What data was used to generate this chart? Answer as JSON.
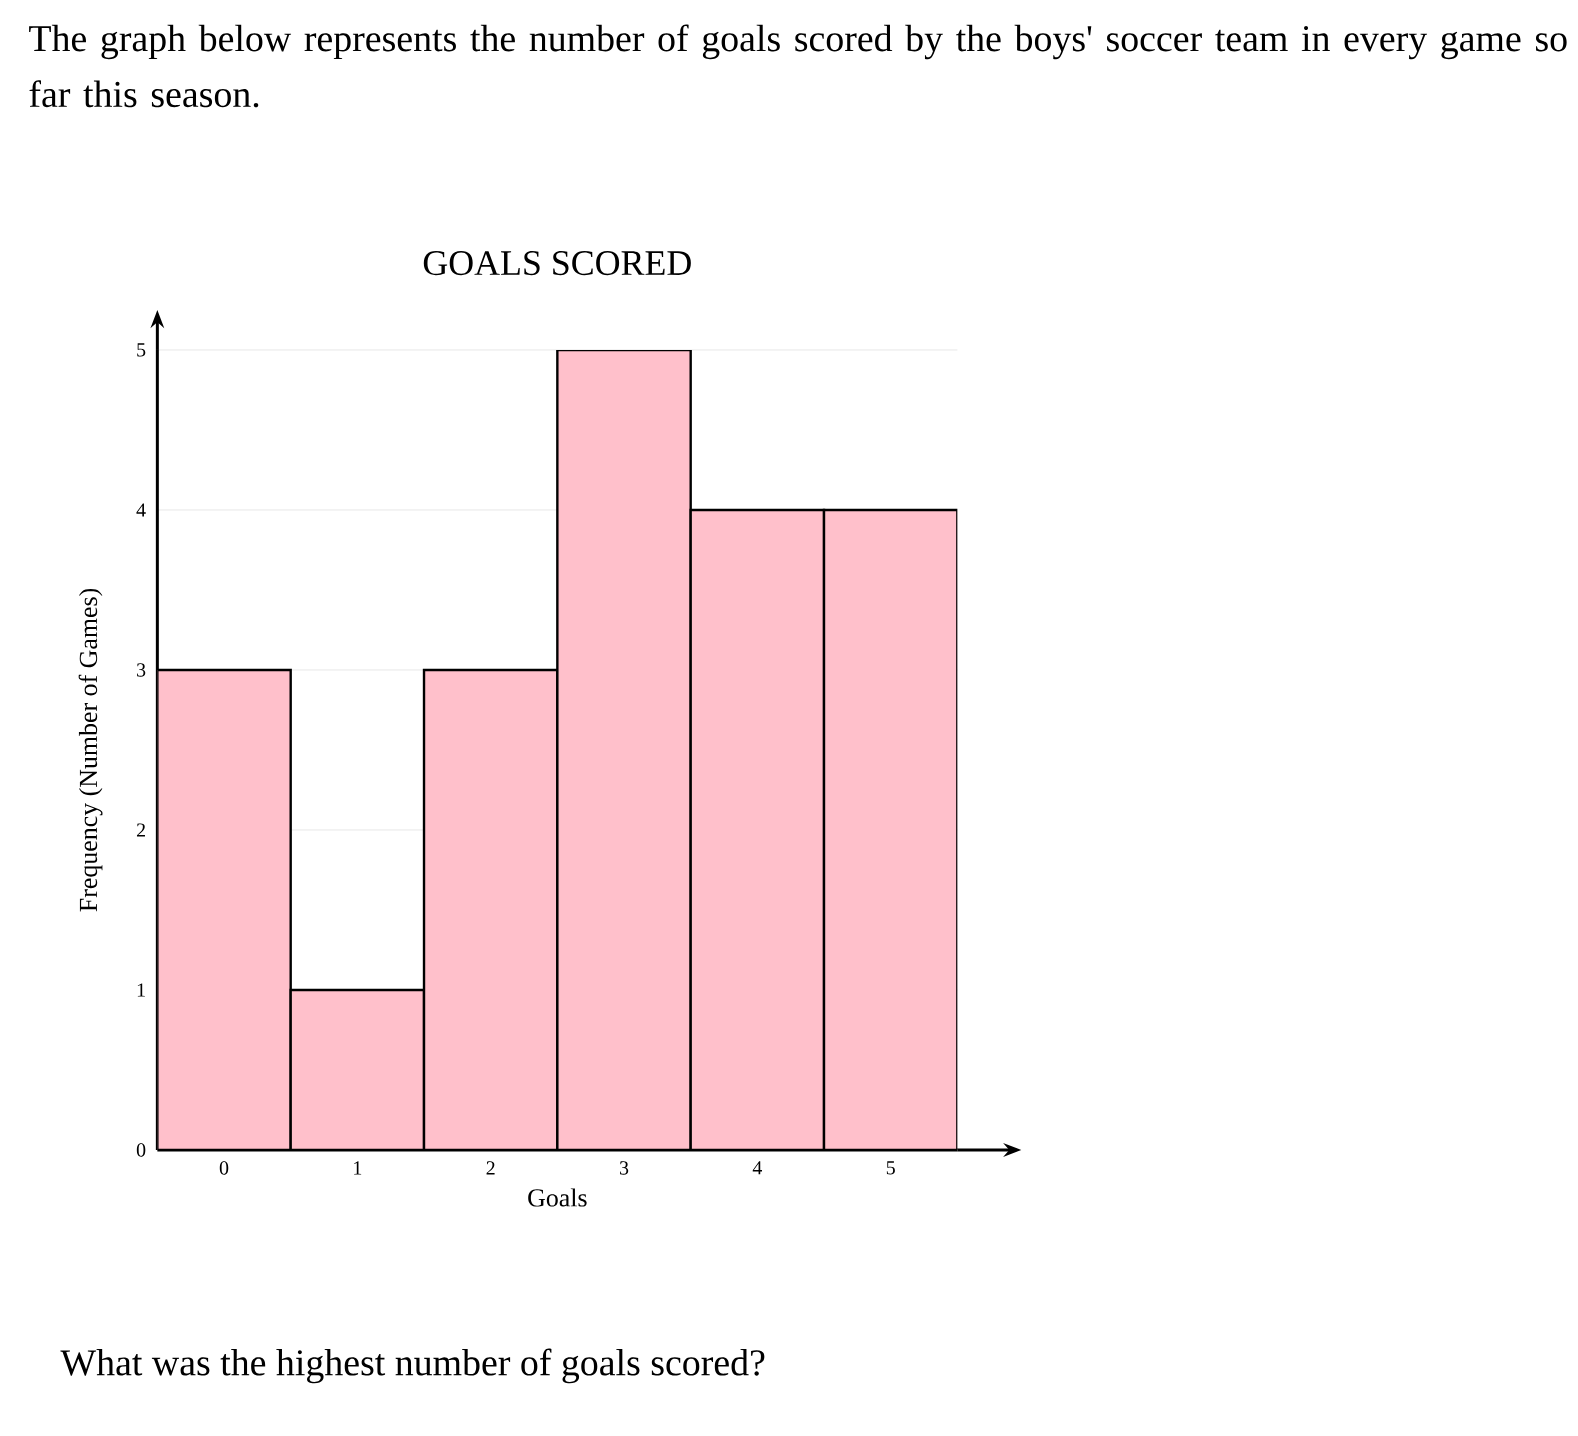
{
  "chart_data": {
    "type": "bar",
    "title": "GOALS SCORED",
    "xlabel": "Goals",
    "ylabel": "Frequency (Number of Games)",
    "categories": [
      "0",
      "1",
      "2",
      "3",
      "4",
      "5"
    ],
    "values": [
      3,
      1,
      3,
      5,
      4,
      4
    ],
    "color": "#ffc0cb",
    "ylim": [
      0,
      5
    ],
    "yticks": [
      0,
      1,
      2,
      3,
      4,
      5
    ],
    "grid": "y",
    "annotations": [
      "The graph below represents the number of goals scored by the boys' soccer team in every game so far this season.",
      "What was the highest number of goals scored?"
    ]
  }
}
